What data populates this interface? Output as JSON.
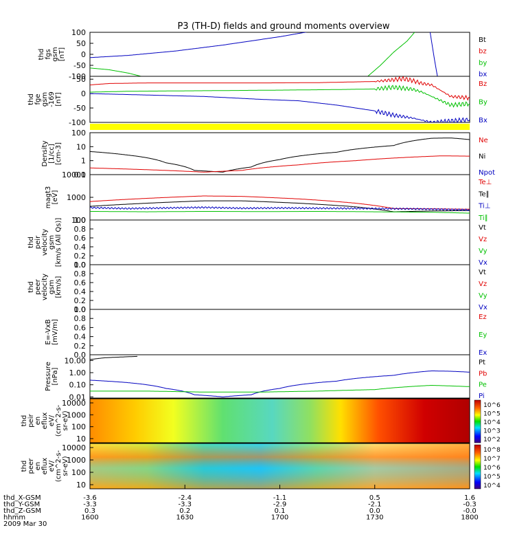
{
  "title": "P3 (TH-D) fields and ground moments overview",
  "date": "2009 Mar 30",
  "colors": {
    "black": "#000000",
    "red": "#e00000",
    "green": "#00c000",
    "blue": "#0000c0",
    "yellow": "#ffff00"
  },
  "chart_data": {
    "type": "line",
    "x_axis": {
      "range": [
        "1600",
        "1800"
      ],
      "rows": [
        {
          "label": "thd_X-GSM",
          "values": [
            "-3.6",
            "-2.4",
            "-1.1",
            "0.5",
            "1.6"
          ]
        },
        {
          "label": "thd_Y-GSM",
          "values": [
            "-3.3",
            "-3.3",
            "-2.9",
            "-2.1",
            "-0.3"
          ]
        },
        {
          "label": "thd_Z-GSM",
          "values": [
            "0.3",
            "0.2",
            "0.1",
            "0.0",
            "-0.0"
          ]
        },
        {
          "label": "hhmm",
          "values": [
            "1600",
            "1630",
            "1700",
            "1730",
            "1800"
          ]
        }
      ]
    },
    "panels": [
      {
        "id": "fgs",
        "ylabel": [
          "thd",
          "fgs",
          "gsm",
          "[nT]"
        ],
        "ylim": [
          -100,
          100
        ],
        "ticks": [
          "100",
          "50",
          "0",
          "-50",
          "-100"
        ],
        "legend": [
          {
            "label": "Bt",
            "color": "black"
          },
          {
            "label": "bz",
            "color": "red"
          },
          {
            "label": "by",
            "color": "green"
          },
          {
            "label": "bx",
            "color": "blue"
          }
        ],
        "series": [
          {
            "name": "bx",
            "color": "blue",
            "points": [
              [
                0,
                -15
              ],
              [
                20,
                -5
              ],
              [
                45,
                15
              ],
              [
                70,
                42
              ],
              [
                100,
                80
              ],
              [
                120,
                110
              ]
            ]
          },
          {
            "name": "by",
            "color": "green",
            "points": [
              [
                0,
                -62
              ],
              [
                10,
                -70
              ],
              [
                20,
                -85
              ],
              [
                27,
                -100
              ]
            ]
          },
          {
            "name": "by",
            "color": "green",
            "points": [
              [
                145,
                -110
              ],
              [
                153,
                -50
              ],
              [
                160,
                10
              ],
              [
                167,
                60
              ],
              [
                172,
                110
              ]
            ]
          },
          {
            "name": "bx",
            "color": "blue",
            "points": [
              [
                179,
                110
              ],
              [
                181,
                0
              ],
              [
                183,
                -100
              ],
              [
                185,
                -115
              ]
            ]
          }
        ]
      },
      {
        "id": "fge",
        "ylabel": [
          "thd",
          "fge",
          "gsm",
          "-169",
          "[nT]"
        ],
        "ylim": [
          -100,
          60
        ],
        "ticks": [
          "50",
          "0",
          "-50",
          "-100"
        ],
        "legend": [
          {
            "label": "Bz",
            "color": "red"
          },
          {
            "label": "By",
            "color": "green"
          },
          {
            "label": "Bx",
            "color": "blue"
          }
        ],
        "series": [
          {
            "name": "Bz",
            "color": "red",
            "points": [
              [
                0,
                30
              ],
              [
                10,
                35
              ],
              [
                30,
                37
              ],
              [
                60,
                37
              ],
              [
                90,
                37
              ],
              [
                120,
                38
              ],
              [
                150,
                42
              ],
              [
                160,
                48
              ],
              [
                165,
                52
              ],
              [
                170,
                45
              ],
              [
                175,
                35
              ],
              [
                180,
                30
              ],
              [
                185,
                10
              ],
              [
                190,
                -10
              ],
              [
                200,
                -15
              ]
            ]
          },
          {
            "name": "By",
            "color": "green",
            "points": [
              [
                0,
                5
              ],
              [
                20,
                8
              ],
              [
                60,
                10
              ],
              [
                100,
                12
              ],
              [
                130,
                14
              ],
              [
                150,
                16
              ],
              [
                160,
                22
              ],
              [
                170,
                15
              ],
              [
                175,
                5
              ],
              [
                180,
                -10
              ],
              [
                185,
                -25
              ],
              [
                190,
                -40
              ],
              [
                200,
                -35
              ]
            ]
          },
          {
            "name": "Bx",
            "color": "blue",
            "points": [
              [
                0,
                0
              ],
              [
                30,
                -5
              ],
              [
                60,
                -10
              ],
              [
                90,
                -20
              ],
              [
                110,
                -25
              ],
              [
                130,
                -40
              ],
              [
                150,
                -60
              ],
              [
                160,
                -75
              ],
              [
                170,
                -85
              ],
              [
                180,
                -100
              ],
              [
                190,
                -95
              ],
              [
                200,
                -90
              ]
            ]
          }
        ]
      },
      {
        "id": "density",
        "ylabel": [
          "Density",
          "[1/cc]",
          "[cm-3]"
        ],
        "log": true,
        "ylim": [
          0.1,
          100
        ],
        "ticks": [
          "100",
          "10",
          "1",
          "0.1"
        ],
        "legend": [
          {
            "label": "Ne",
            "color": "red"
          },
          {
            "label": "Ni",
            "color": "black"
          },
          {
            "label": "Npot",
            "color": "blue"
          }
        ],
        "series": [
          {
            "name": "Ni",
            "color": "black",
            "points": [
              [
                0,
                4.5
              ],
              [
                20,
                2.5
              ],
              [
                40,
                0.7
              ],
              [
                55,
                0.2
              ],
              [
                70,
                0.15
              ],
              [
                85,
                0.35
              ],
              [
                100,
                1.2
              ],
              [
                130,
                4
              ],
              [
                160,
                12
              ],
              [
                180,
                40
              ],
              [
                190,
                42
              ],
              [
                200,
                32
              ]
            ]
          },
          {
            "name": "Ne",
            "color": "red",
            "points": [
              [
                0,
                0.3
              ],
              [
                20,
                0.25
              ],
              [
                40,
                0.2
              ],
              [
                60,
                0.15
              ],
              [
                80,
                0.2
              ],
              [
                110,
                0.5
              ],
              [
                140,
                1
              ],
              [
                170,
                1.8
              ],
              [
                185,
                2.2
              ],
              [
                200,
                2.1
              ]
            ]
          }
        ]
      },
      {
        "id": "temperature",
        "ylabel": [
          "magt3",
          "[eV]"
        ],
        "log": true,
        "ylim": [
          100,
          10000
        ],
        "ticks": [
          "10000",
          "1000",
          "100"
        ],
        "legend": [
          {
            "label": "Te⊥",
            "color": "red"
          },
          {
            "label": "Te∥",
            "color": "black"
          },
          {
            "label": "Ti⊥",
            "color": "blue"
          },
          {
            "label": "Ti∥",
            "color": "green"
          }
        ],
        "series": [
          {
            "name": "Te⊥",
            "color": "red",
            "points": [
              [
                0,
                650
              ],
              [
                30,
                900
              ],
              [
                60,
                1150
              ],
              [
                80,
                1100
              ],
              [
                110,
                850
              ],
              [
                140,
                550
              ],
              [
                160,
                320
              ],
              [
                180,
                310
              ],
              [
                200,
                300
              ]
            ]
          },
          {
            "name": "Te∥",
            "color": "black",
            "points": [
              [
                0,
                400
              ],
              [
                30,
                550
              ],
              [
                60,
                700
              ],
              [
                80,
                700
              ],
              [
                110,
                550
              ],
              [
                140,
                380
              ],
              [
                160,
                230
              ],
              [
                180,
                250
              ],
              [
                200,
                260
              ]
            ]
          },
          {
            "name": "Ti⊥",
            "color": "blue",
            "points": [
              [
                0,
                350
              ],
              [
                20,
                320
              ],
              [
                40,
                340
              ],
              [
                60,
                360
              ],
              [
                80,
                330
              ],
              [
                100,
                340
              ],
              [
                120,
                330
              ],
              [
                150,
                320
              ],
              [
                170,
                310
              ],
              [
                200,
                280
              ]
            ]
          },
          {
            "name": "Ti∥",
            "color": "green",
            "points": [
              [
                0,
                240
              ],
              [
                30,
                230
              ],
              [
                60,
                240
              ],
              [
                90,
                235
              ],
              [
                120,
                240
              ],
              [
                150,
                230
              ],
              [
                180,
                220
              ],
              [
                200,
                200
              ]
            ]
          }
        ]
      },
      {
        "id": "peir_velocity",
        "ylabel": [
          "thd",
          "peir",
          "velocity",
          "gsm",
          "[km/s (All Qs)]"
        ],
        "ylim": [
          0,
          1
        ],
        "ticks": [
          "1.0",
          "0.8",
          "0.6",
          "0.4",
          "0.2",
          "0.0"
        ],
        "legend": [
          {
            "label": "Vt",
            "color": "black"
          },
          {
            "label": "Vz",
            "color": "red"
          },
          {
            "label": "Vy",
            "color": "green"
          },
          {
            "label": "Vx",
            "color": "blue"
          }
        ],
        "series": []
      },
      {
        "id": "peer_velocity",
        "ylabel": [
          "thd",
          "peer",
          "velocity",
          "gsm",
          "[km/s]"
        ],
        "ylim": [
          0,
          1
        ],
        "ticks": [
          "1.0",
          "0.8",
          "0.6",
          "0.4",
          "0.2",
          "0.0"
        ],
        "legend": [
          {
            "label": "Vt",
            "color": "black"
          },
          {
            "label": "Vz",
            "color": "red"
          },
          {
            "label": "Vy",
            "color": "green"
          },
          {
            "label": "Vx",
            "color": "blue"
          }
        ],
        "series": []
      },
      {
        "id": "efield",
        "ylabel": [
          "E=-VxB",
          "[mV/m]"
        ],
        "ylim": [
          0,
          1
        ],
        "ticks": [
          "1.0",
          "0.8",
          "0.6",
          "0.4",
          "0.2",
          "0.0"
        ],
        "legend": [
          {
            "label": "Ez",
            "color": "red"
          },
          {
            "label": "Ey",
            "color": "green"
          },
          {
            "label": "Ex",
            "color": "blue"
          }
        ],
        "series": []
      },
      {
        "id": "pressure",
        "ylabel": [
          "Pressure",
          "[nPa]"
        ],
        "log": true,
        "ylim": [
          0.008,
          30
        ],
        "ticks": [
          "10.00",
          "1.00",
          "0.10",
          "0.01"
        ],
        "legend": [
          {
            "label": "Pt",
            "color": "black"
          },
          {
            "label": "Pb",
            "color": "red"
          },
          {
            "label": "Pe",
            "color": "green"
          },
          {
            "label": "Pi",
            "color": "blue"
          }
        ],
        "series": [
          {
            "name": "Pt",
            "color": "black",
            "points": [
              [
                0,
                12
              ],
              [
                8,
                17
              ],
              [
                18,
                20
              ],
              [
                25,
                22
              ]
            ]
          },
          {
            "name": "Pi",
            "color": "blue",
            "points": [
              [
                0,
                0.24
              ],
              [
                20,
                0.15
              ],
              [
                40,
                0.05
              ],
              [
                55,
                0.015
              ],
              [
                70,
                0.01
              ],
              [
                85,
                0.015
              ],
              [
                100,
                0.05
              ],
              [
                130,
                0.2
              ],
              [
                160,
                0.6
              ],
              [
                180,
                1.4
              ],
              [
                190,
                1.3
              ],
              [
                200,
                1.1
              ]
            ]
          },
          {
            "name": "Pe",
            "color": "green",
            "points": [
              [
                0,
                0.03
              ],
              [
                30,
                0.03
              ],
              [
                60,
                0.025
              ],
              [
                90,
                0.025
              ],
              [
                120,
                0.03
              ],
              [
                150,
                0.04
              ],
              [
                180,
                0.09
              ],
              [
                200,
                0.07
              ]
            ]
          }
        ]
      },
      {
        "id": "peir_eflux",
        "ylabel": [
          "thd",
          "peir",
          "en",
          "eflux",
          "eV/",
          "(cm^2-s-",
          "sr-eV)"
        ],
        "ticks": [
          "10000",
          "1000",
          "100",
          "10"
        ],
        "colorbar_ticks": [
          "10^6",
          "10^5",
          "10^4",
          "10^3",
          "10^2"
        ]
      },
      {
        "id": "peer_eflux",
        "ylabel": [
          "thd",
          "peer",
          "en",
          "eflux",
          "eV/",
          "(cm^2-s-",
          "sr-eV)"
        ],
        "ticks": [
          "10000",
          "1000",
          "100",
          "10"
        ],
        "colorbar_ticks": [
          "10^8",
          "10^7",
          "10^6",
          "10^5",
          "10^4"
        ]
      }
    ]
  }
}
